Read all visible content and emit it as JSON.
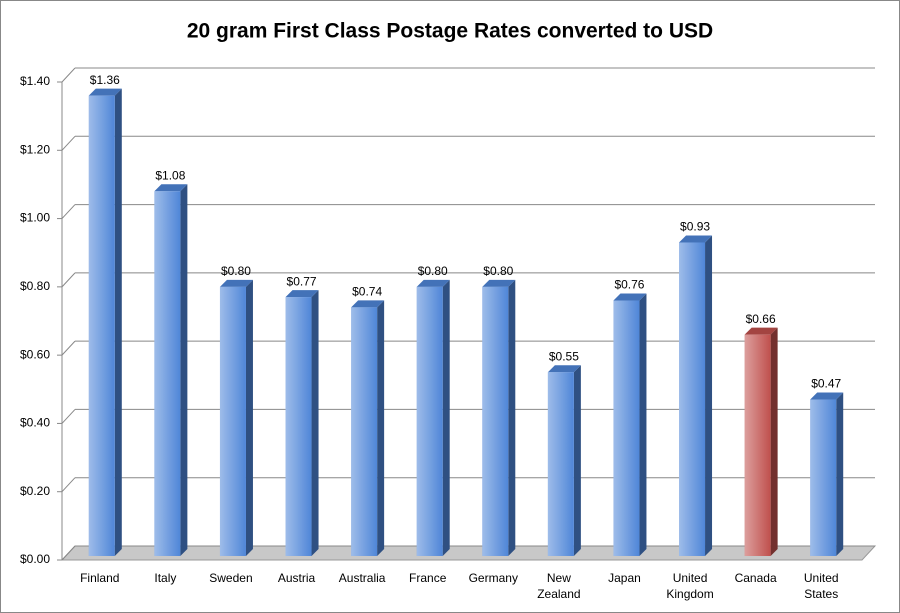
{
  "chart_data": {
    "type": "bar",
    "title": "20 gram First Class Postage Rates converted to USD",
    "categories": [
      "Finland",
      "Italy",
      "Sweden",
      "Austria",
      "Australia",
      "France",
      "Germany",
      "New Zealand",
      "Japan",
      "United Kingdom",
      "Canada",
      "United States"
    ],
    "values": [
      1.36,
      1.08,
      0.8,
      0.77,
      0.74,
      0.8,
      0.8,
      0.55,
      0.76,
      0.93,
      0.66,
      0.47
    ],
    "value_labels": [
      "$1.36",
      "$1.08",
      "$0.80",
      "$0.77",
      "$0.74",
      "$0.80",
      "$0.80",
      "$0.55",
      "$0.76",
      "$0.93",
      "$0.66",
      "$0.47"
    ],
    "colors": [
      "#4f86d8",
      "#4f86d8",
      "#4f86d8",
      "#4f86d8",
      "#4f86d8",
      "#4f86d8",
      "#4f86d8",
      "#4f86d8",
      "#4f86d8",
      "#4f86d8",
      "#c0504d",
      "#4f86d8"
    ],
    "ylim": [
      0,
      1.4
    ],
    "yticks": [
      {
        "value": 0,
        "label": "$0.00"
      },
      {
        "value": 0.2,
        "label": "$0.20"
      },
      {
        "value": 0.4,
        "label": "$0.40"
      },
      {
        "value": 0.6,
        "label": "$0.60"
      },
      {
        "value": 0.8,
        "label": "$0.80"
      },
      {
        "value": 1.0,
        "label": "$1.00"
      },
      {
        "value": 1.2,
        "label": "$1.20"
      },
      {
        "value": 1.4,
        "label": "$1.40"
      }
    ],
    "grid": true
  }
}
